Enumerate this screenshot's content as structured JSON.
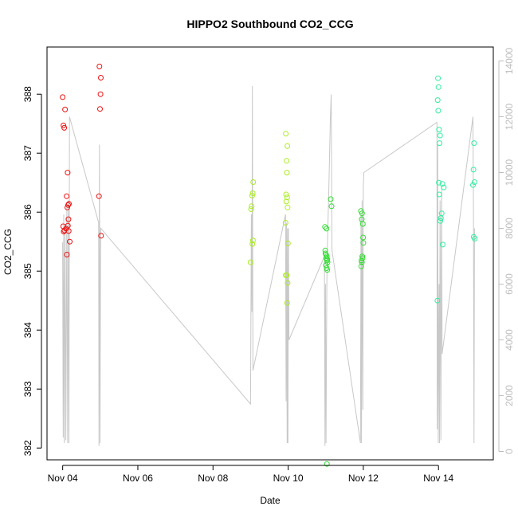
{
  "chart_data": {
    "type": "scatter",
    "title": "HIPPO2 Southbound CO2_CCG",
    "xlabel": "Date",
    "ylabel": "CO2_CCG",
    "y2label": "",
    "xlim": [
      "2009-11-03T14:00",
      "2009-11-15T11:00"
    ],
    "ylim": [
      381.8,
      388.8
    ],
    "y2lim": [
      -300,
      14500
    ],
    "x_ticks": [
      {
        "date": "2009-11-04",
        "label": "Nov 04"
      },
      {
        "date": "2009-11-06",
        "label": "Nov 06"
      },
      {
        "date": "2009-11-08",
        "label": "Nov 08"
      },
      {
        "date": "2009-11-10",
        "label": "Nov 10"
      },
      {
        "date": "2009-11-12",
        "label": "Nov 12"
      },
      {
        "date": "2009-11-14",
        "label": "Nov 14"
      }
    ],
    "y_ticks": [
      382,
      383,
      384,
      385,
      386,
      387,
      388
    ],
    "y2_ticks": [
      0,
      2000,
      4000,
      6000,
      8000,
      10000,
      12000,
      14000
    ],
    "grid": false,
    "legend": "none",
    "points": [
      {
        "t": "2009-11-04T00:00",
        "y": 387.95,
        "color": "#ee1111"
      },
      {
        "t": "2009-11-04T00:30",
        "y": 387.47,
        "color": "#ee1111"
      },
      {
        "t": "2009-11-04T01:00",
        "y": 387.43,
        "color": "#ee1111"
      },
      {
        "t": "2009-11-04T01:30",
        "y": 387.74,
        "color": "#ee1111"
      },
      {
        "t": "2009-11-04T00:20",
        "y": 385.76,
        "color": "#ee1111"
      },
      {
        "t": "2009-11-04T00:40",
        "y": 385.67,
        "color": "#ee1111"
      },
      {
        "t": "2009-11-04T01:10",
        "y": 385.69,
        "color": "#ee1111"
      },
      {
        "t": "2009-11-04T02:10",
        "y": 385.72,
        "color": "#ee1111"
      },
      {
        "t": "2009-11-04T02:30",
        "y": 386.27,
        "color": "#ee1111"
      },
      {
        "t": "2009-11-04T03:00",
        "y": 386.08,
        "color": "#ee1111"
      },
      {
        "t": "2009-11-04T03:30",
        "y": 386.12,
        "color": "#ee1111"
      },
      {
        "t": "2009-11-04T04:00",
        "y": 386.14,
        "color": "#ee1111"
      },
      {
        "t": "2009-11-04T03:10",
        "y": 386.67,
        "color": "#ee1111"
      },
      {
        "t": "2009-11-04T03:40",
        "y": 385.88,
        "color": "#ee1111"
      },
      {
        "t": "2009-11-04T03:20",
        "y": 385.77,
        "color": "#ee1111"
      },
      {
        "t": "2009-11-04T03:50",
        "y": 385.68,
        "color": "#ee1111"
      },
      {
        "t": "2009-11-04T02:40",
        "y": 385.28,
        "color": "#ee1111"
      },
      {
        "t": "2009-11-04T04:30",
        "y": 385.5,
        "color": "#ee1111"
      },
      {
        "t": "2009-11-04T23:30",
        "y": 388.47,
        "color": "#ee1111"
      },
      {
        "t": "2009-11-05T00:20",
        "y": 388.28,
        "color": "#ee1111"
      },
      {
        "t": "2009-11-05T00:10",
        "y": 388.0,
        "color": "#ee1111"
      },
      {
        "t": "2009-11-04T23:50",
        "y": 387.75,
        "color": "#ee1111"
      },
      {
        "t": "2009-11-04T23:10",
        "y": 386.27,
        "color": "#ee1111"
      },
      {
        "t": "2009-11-05T00:30",
        "y": 385.6,
        "color": "#ee1111"
      },
      {
        "t": "2009-11-09T00:00",
        "y": 385.15,
        "color": "#aaee22"
      },
      {
        "t": "2009-11-09T00:20",
        "y": 386.05,
        "color": "#aaee22"
      },
      {
        "t": "2009-11-09T00:40",
        "y": 386.1,
        "color": "#aaee22"
      },
      {
        "t": "2009-11-09T01:00",
        "y": 386.28,
        "color": "#aaee22"
      },
      {
        "t": "2009-11-09T01:20",
        "y": 386.32,
        "color": "#aaee22"
      },
      {
        "t": "2009-11-09T01:40",
        "y": 386.51,
        "color": "#aaee22"
      },
      {
        "t": "2009-11-09T01:10",
        "y": 385.46,
        "color": "#aaee22"
      },
      {
        "t": "2009-11-09T01:30",
        "y": 385.52,
        "color": "#aaee22"
      },
      {
        "t": "2009-11-09T22:30",
        "y": 387.33,
        "color": "#aaee22"
      },
      {
        "t": "2009-11-09T23:00",
        "y": 386.87,
        "color": "#aaee22"
      },
      {
        "t": "2009-11-09T23:30",
        "y": 387.12,
        "color": "#aaee22"
      },
      {
        "t": "2009-11-09T23:10",
        "y": 386.67,
        "color": "#aaee22"
      },
      {
        "t": "2009-11-09T22:40",
        "y": 386.3,
        "color": "#aaee22"
      },
      {
        "t": "2009-11-09T23:20",
        "y": 386.25,
        "color": "#aaee22"
      },
      {
        "t": "2009-11-09T22:50",
        "y": 386.18,
        "color": "#aaee22"
      },
      {
        "t": "2009-11-09T23:40",
        "y": 386.08,
        "color": "#aaee22"
      },
      {
        "t": "2009-11-09T22:20",
        "y": 385.82,
        "color": "#aaee22"
      },
      {
        "t": "2009-11-09T23:50",
        "y": 385.47,
        "color": "#aaee22"
      },
      {
        "t": "2009-11-09T22:30",
        "y": 384.93,
        "color": "#aaee22"
      },
      {
        "t": "2009-11-09T23:00",
        "y": 384.93,
        "color": "#aaee22"
      },
      {
        "t": "2009-11-09T23:40",
        "y": 384.8,
        "color": "#aaee22"
      },
      {
        "t": "2009-11-09T23:20",
        "y": 384.46,
        "color": "#aaee22"
      },
      {
        "t": "2009-11-10T23:30",
        "y": 385.75,
        "color": "#33dd33"
      },
      {
        "t": "2009-11-11T00:30",
        "y": 385.72,
        "color": "#33dd33"
      },
      {
        "t": "2009-11-10T23:40",
        "y": 385.35,
        "color": "#33dd33"
      },
      {
        "t": "2009-11-10T23:50",
        "y": 385.3,
        "color": "#33dd33"
      },
      {
        "t": "2009-11-11T00:10",
        "y": 385.28,
        "color": "#33dd33"
      },
      {
        "t": "2009-11-11T00:20",
        "y": 385.22,
        "color": "#33dd33"
      },
      {
        "t": "2009-11-11T00:40",
        "y": 385.25,
        "color": "#33dd33"
      },
      {
        "t": "2009-11-11T00:50",
        "y": 385.18,
        "color": "#33dd33"
      },
      {
        "t": "2009-11-11T01:00",
        "y": 385.2,
        "color": "#33dd33"
      },
      {
        "t": "2009-11-11T01:10",
        "y": 385.15,
        "color": "#33dd33"
      },
      {
        "t": "2009-11-11T00:05",
        "y": 385.1,
        "color": "#33dd33"
      },
      {
        "t": "2009-11-11T00:35",
        "y": 385.05,
        "color": "#33dd33"
      },
      {
        "t": "2009-11-11T00:55",
        "y": 385.02,
        "color": "#33dd33"
      },
      {
        "t": "2009-11-11T03:10",
        "y": 386.22,
        "color": "#33dd33"
      },
      {
        "t": "2009-11-11T03:40",
        "y": 386.1,
        "color": "#33dd33"
      },
      {
        "t": "2009-11-11T00:45",
        "y": 381.73,
        "color": "#33dd33"
      },
      {
        "t": "2009-11-11T22:30",
        "y": 386.02,
        "color": "#33dd33"
      },
      {
        "t": "2009-11-11T23:10",
        "y": 385.98,
        "color": "#33dd33"
      },
      {
        "t": "2009-11-11T23:00",
        "y": 385.88,
        "color": "#33dd33"
      },
      {
        "t": "2009-11-11T23:40",
        "y": 385.8,
        "color": "#33dd33"
      },
      {
        "t": "2009-11-11T23:50",
        "y": 385.57,
        "color": "#33dd33"
      },
      {
        "t": "2009-11-12T00:00",
        "y": 385.48,
        "color": "#33dd33"
      },
      {
        "t": "2009-11-11T23:20",
        "y": 385.25,
        "color": "#33dd33"
      },
      {
        "t": "2009-11-11T23:30",
        "y": 385.22,
        "color": "#33dd33"
      },
      {
        "t": "2009-11-11T22:50",
        "y": 385.18,
        "color": "#33dd33"
      },
      {
        "t": "2009-11-11T23:05",
        "y": 385.15,
        "color": "#33dd33"
      },
      {
        "t": "2009-11-11T22:40",
        "y": 385.08,
        "color": "#33dd33"
      },
      {
        "t": "2009-11-13T23:40",
        "y": 388.27,
        "color": "#33eea0"
      },
      {
        "t": "2009-11-14T00:00",
        "y": 388.12,
        "color": "#33eea0"
      },
      {
        "t": "2009-11-13T23:30",
        "y": 387.9,
        "color": "#33eea0"
      },
      {
        "t": "2009-11-13T23:50",
        "y": 387.72,
        "color": "#33eea0"
      },
      {
        "t": "2009-11-14T00:20",
        "y": 387.4,
        "color": "#33eea0"
      },
      {
        "t": "2009-11-14T01:00",
        "y": 387.3,
        "color": "#33eea0"
      },
      {
        "t": "2009-11-14T00:40",
        "y": 387.17,
        "color": "#33eea0"
      },
      {
        "t": "2009-11-14T00:10",
        "y": 386.5,
        "color": "#33eea0"
      },
      {
        "t": "2009-11-14T02:30",
        "y": 386.48,
        "color": "#33eea0"
      },
      {
        "t": "2009-11-14T03:20",
        "y": 386.42,
        "color": "#33eea0"
      },
      {
        "t": "2009-11-14T00:30",
        "y": 386.3,
        "color": "#33eea0"
      },
      {
        "t": "2009-11-14T02:00",
        "y": 385.98,
        "color": "#33eea0"
      },
      {
        "t": "2009-11-14T01:30",
        "y": 385.9,
        "color": "#33eea0"
      },
      {
        "t": "2009-11-14T01:10",
        "y": 385.85,
        "color": "#33eea0"
      },
      {
        "t": "2009-11-14T02:40",
        "y": 385.45,
        "color": "#33eea0"
      },
      {
        "t": "2009-11-13T23:20",
        "y": 384.5,
        "color": "#33eea0"
      },
      {
        "t": "2009-11-14T22:40",
        "y": 387.17,
        "color": "#33eea0"
      },
      {
        "t": "2009-11-14T22:20",
        "y": 386.72,
        "color": "#33eea0"
      },
      {
        "t": "2009-11-14T23:00",
        "y": 386.51,
        "color": "#33eea0"
      },
      {
        "t": "2009-11-14T22:00",
        "y": 386.46,
        "color": "#33eea0"
      },
      {
        "t": "2009-11-14T22:30",
        "y": 385.58,
        "color": "#33eea0"
      },
      {
        "t": "2009-11-14T23:10",
        "y": 385.55,
        "color": "#33eea0"
      }
    ],
    "altitude_line": [
      [
        "2009-11-04T00:00",
        7500
      ],
      [
        "2009-11-04T00:20",
        500
      ],
      [
        "2009-11-04T00:40",
        8500
      ],
      [
        "2009-11-04T01:00",
        300
      ],
      [
        "2009-11-04T01:30",
        8000
      ],
      [
        "2009-11-04T02:00",
        400
      ],
      [
        "2009-11-04T02:40",
        8800
      ],
      [
        "2009-11-04T03:10",
        300
      ],
      [
        "2009-11-04T03:40",
        9000
      ],
      [
        "2009-11-04T04:00",
        300
      ],
      [
        "2009-11-04T04:20",
        12000
      ],
      [
        "2009-11-04T23:00",
        8200
      ],
      [
        "2009-11-04T23:10",
        200
      ],
      [
        "2009-11-04T23:30",
        11000
      ],
      [
        "2009-11-04T23:50",
        300
      ],
      [
        "2009-11-05T00:10",
        6400
      ],
      [
        "2009-11-05T00:20",
        8000
      ],
      [
        "2009-11-09T00:00",
        1700
      ],
      [
        "2009-11-09T00:30",
        8500
      ],
      [
        "2009-11-09T00:50",
        5000
      ],
      [
        "2009-11-09T01:10",
        13100
      ],
      [
        "2009-11-09T01:30",
        2900
      ],
      [
        "2009-11-09T22:20",
        8500
      ],
      [
        "2009-11-09T22:40",
        1800
      ],
      [
        "2009-11-09T23:00",
        8200
      ],
      [
        "2009-11-09T23:20",
        300
      ],
      [
        "2009-11-09T23:40",
        8000
      ],
      [
        "2009-11-09T23:50",
        300
      ],
      [
        "2009-11-10T00:10",
        8000
      ],
      [
        "2009-11-10T00:30",
        4000
      ],
      [
        "2009-11-10T23:10",
        7000
      ],
      [
        "2009-11-10T23:30",
        200
      ],
      [
        "2009-11-10T23:50",
        6000
      ],
      [
        "2009-11-11T00:10",
        300
      ],
      [
        "2009-11-11T00:40",
        6000
      ],
      [
        "2009-11-11T01:00",
        7200
      ],
      [
        "2009-11-11T02:00",
        9500
      ],
      [
        "2009-11-11T03:00",
        12000
      ],
      [
        "2009-11-11T03:30",
        12800
      ],
      [
        "2009-11-11T04:00",
        7200
      ],
      [
        "2009-11-11T22:10",
        300
      ],
      [
        "2009-11-11T22:30",
        8500
      ],
      [
        "2009-11-11T22:50",
        300
      ],
      [
        "2009-11-11T23:10",
        9000
      ],
      [
        "2009-11-11T23:40",
        1500
      ],
      [
        "2009-11-12T00:00",
        9500
      ],
      [
        "2009-11-12T00:20",
        10000
      ],
      [
        "2009-11-13T23:00",
        11800
      ],
      [
        "2009-11-13T23:10",
        800
      ],
      [
        "2009-11-13T23:30",
        11000
      ],
      [
        "2009-11-13T23:50",
        300
      ],
      [
        "2009-11-14T00:20",
        6000
      ],
      [
        "2009-11-14T00:40",
        300
      ],
      [
        "2009-11-14T01:00",
        9000
      ],
      [
        "2009-11-14T01:30",
        400
      ],
      [
        "2009-11-14T02:00",
        9500
      ],
      [
        "2009-11-14T02:20",
        3500
      ],
      [
        "2009-11-14T22:00",
        12000
      ],
      [
        "2009-11-14T22:20",
        8500
      ],
      [
        "2009-11-14T22:40",
        300
      ],
      [
        "2009-11-14T23:00",
        8000
      ]
    ]
  }
}
